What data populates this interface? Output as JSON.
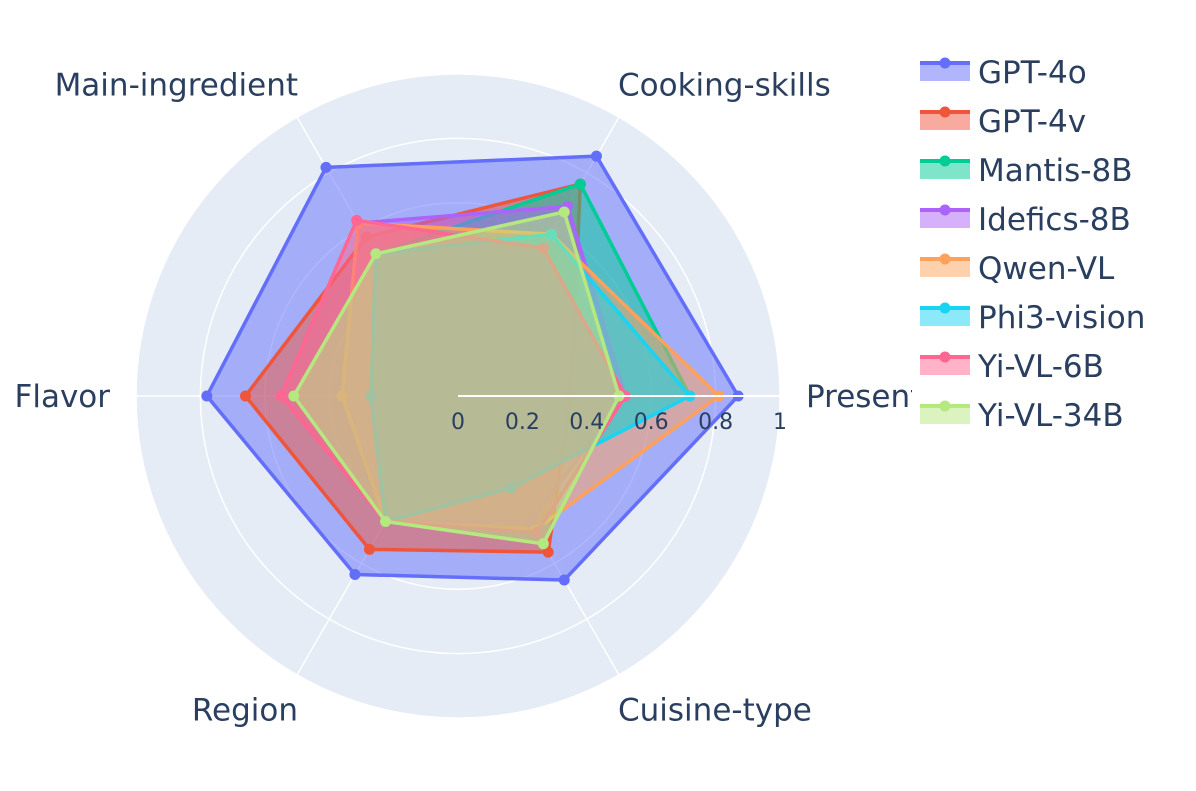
{
  "chart_data": {
    "type": "radar",
    "title": "",
    "axes": [
      "Presentation",
      "Cooking-skills",
      "Main-ingredient",
      "Flavor",
      "Region",
      "Cuisine-type"
    ],
    "radial_range": [
      0,
      1
    ],
    "radial_ticks": [
      "0",
      "0.2",
      "0.4",
      "0.6",
      "0.8",
      "1"
    ],
    "legend_position": "right",
    "grid": true,
    "series": [
      {
        "name": "GPT-4o",
        "color": "#636efa",
        "values": [
          0.87,
          0.86,
          0.82,
          0.78,
          0.64,
          0.66
        ]
      },
      {
        "name": "GPT-4v",
        "color": "#ef553b",
        "values": [
          0.35,
          0.76,
          0.57,
          0.66,
          0.55,
          0.56
        ]
      },
      {
        "name": "Mantis-8B",
        "color": "#00cc96",
        "values": [
          0.72,
          0.76,
          0.51,
          0.27,
          0.45,
          0.33
        ]
      },
      {
        "name": "Idefics-8B",
        "color": "#ab63fa",
        "values": [
          0.52,
          0.68,
          0.62,
          0.36,
          0.45,
          0.45
        ]
      },
      {
        "name": "Qwen-VL",
        "color": "#ffa15a",
        "values": [
          0.81,
          0.58,
          0.62,
          0.36,
          0.45,
          0.48
        ]
      },
      {
        "name": "Phi3-vision",
        "color": "#19d3f3",
        "values": [
          0.72,
          0.58,
          0.51,
          0.27,
          0.45,
          0.33
        ]
      },
      {
        "name": "Yi-VL-6B",
        "color": "#ff6692",
        "values": [
          0.52,
          0.53,
          0.63,
          0.55,
          0.45,
          0.49
        ]
      },
      {
        "name": "Yi-VL-34B",
        "color": "#b6e880",
        "values": [
          0.5,
          0.66,
          0.51,
          0.51,
          0.45,
          0.53
        ]
      }
    ]
  }
}
